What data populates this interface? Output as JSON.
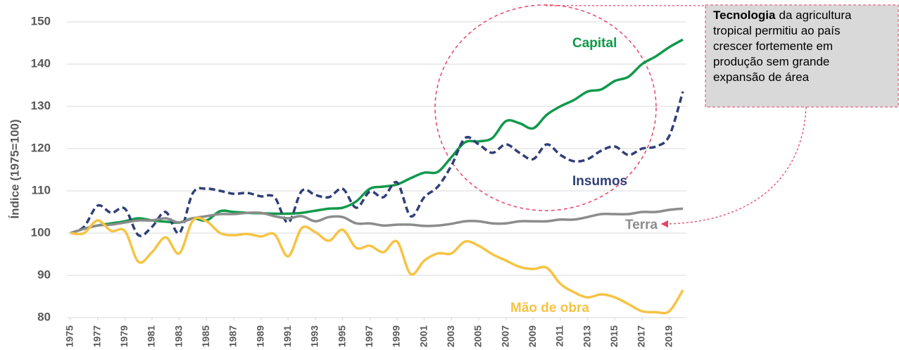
{
  "chart_data": {
    "type": "line",
    "y_label": "Índice (1975=100)",
    "x": [
      1975,
      1976,
      1977,
      1978,
      1979,
      1980,
      1981,
      1982,
      1983,
      1984,
      1985,
      1986,
      1987,
      1988,
      1989,
      1990,
      1991,
      1992,
      1993,
      1994,
      1995,
      1996,
      1997,
      1998,
      1999,
      2000,
      2001,
      2002,
      2003,
      2004,
      2005,
      2006,
      2007,
      2008,
      2009,
      2010,
      2011,
      2012,
      2013,
      2014,
      2015,
      2016,
      2017,
      2018,
      2019,
      2020
    ],
    "xlim": [
      1975,
      2020
    ],
    "xticks": [
      1975,
      1977,
      1979,
      1981,
      1983,
      1985,
      1987,
      1989,
      1991,
      1993,
      1995,
      1997,
      1999,
      2001,
      2003,
      2005,
      2007,
      2009,
      2011,
      2013,
      2015,
      2017,
      2019
    ],
    "ylim": [
      80,
      150
    ],
    "yticks": [
      80,
      90,
      100,
      110,
      120,
      130,
      140,
      150
    ],
    "grid": true,
    "series": [
      {
        "name": "Capital",
        "color": "#10994a",
        "dashed": false,
        "values": [
          100,
          101,
          101.8,
          102.3,
          102.8,
          103.5,
          103,
          102.7,
          102.5,
          103.5,
          103,
          105.2,
          105,
          104.8,
          104.7,
          104.6,
          104.6,
          104.8,
          105.3,
          105.8,
          106,
          107.5,
          110.5,
          111,
          111.5,
          113,
          114.3,
          114.5,
          118,
          121.5,
          121.7,
          122.5,
          126.5,
          126,
          124.8,
          128,
          130,
          131.5,
          133.5,
          134,
          136,
          137,
          140,
          141.8,
          144,
          145.8
        ]
      },
      {
        "name": "Insumos",
        "color": "#2f3f78",
        "dashed": true,
        "values": [
          100,
          101.5,
          106.5,
          104.8,
          105.8,
          99.5,
          101.5,
          105,
          100,
          109.5,
          110.5,
          110,
          109.3,
          109.5,
          108.7,
          108.5,
          102.5,
          110,
          109,
          108.5,
          110.5,
          106,
          109.8,
          108.5,
          112,
          104,
          108.5,
          111,
          116,
          122.5,
          121,
          119,
          121,
          119,
          117.5,
          121,
          118.5,
          117,
          117.5,
          119.5,
          120.5,
          118.5,
          120,
          120.5,
          123,
          133.5
        ]
      },
      {
        "name": "Terra",
        "color": "#8c8c8c",
        "dashed": false,
        "values": [
          100,
          101,
          101.8,
          102,
          102.5,
          103,
          103,
          103.5,
          102.5,
          103.5,
          104,
          104.5,
          104.5,
          104.8,
          104.8,
          104,
          103.5,
          104,
          102.8,
          103.8,
          103.8,
          102.3,
          102.3,
          101.8,
          102,
          102,
          101.7,
          101.8,
          102.2,
          102.8,
          102.8,
          102.3,
          102.3,
          102.8,
          102.8,
          102.8,
          103.2,
          103.2,
          103.8,
          104.5,
          104.5,
          104.5,
          105,
          105,
          105.5,
          105.8
        ]
      },
      {
        "name": "Mão de obra",
        "color": "#f6c343",
        "dashed": false,
        "values": [
          100,
          100,
          103,
          100.5,
          100.5,
          93.2,
          95.5,
          99,
          95.2,
          103,
          102.8,
          100,
          99.5,
          99.8,
          99.2,
          99.7,
          94.5,
          101.2,
          100.2,
          98.2,
          100.8,
          96.5,
          97,
          95.5,
          98,
          90.3,
          93.5,
          95.2,
          95.2,
          98,
          97,
          95,
          93.5,
          92,
          91.5,
          91.8,
          88,
          86,
          84.8,
          85.5,
          84.8,
          83.2,
          81.5,
          81.3,
          81.5,
          86.5
        ]
      }
    ],
    "annotation": {
      "bold": "Tecnologia",
      "lines": [
        "da agricultura",
        "tropical permitiu ao país",
        "crescer fortemente em",
        "produção sem grande",
        "expansão de área"
      ]
    }
  }
}
